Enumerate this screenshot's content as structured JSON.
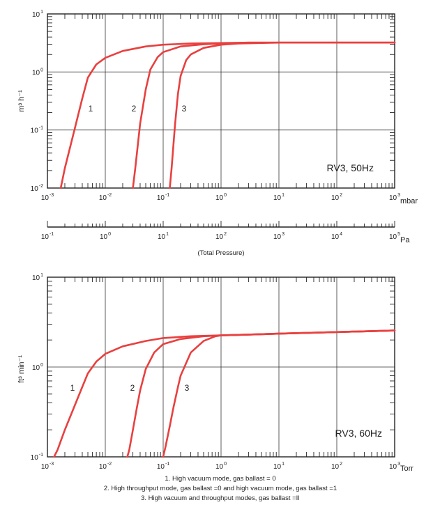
{
  "chart_data": [
    {
      "type": "line",
      "title": "",
      "panel_label": "RV3, 50Hz",
      "xscale": "log",
      "yscale": "log",
      "xlim": [
        0.001,
        1000
      ],
      "ylim": [
        0.01,
        10
      ],
      "x_unit": "mbar",
      "y_unit": "m³ h⁻¹",
      "x_ticks": [
        {
          "base": "10",
          "exp": "-3"
        },
        {
          "base": "10",
          "exp": "-2"
        },
        {
          "base": "10",
          "exp": "-1"
        },
        {
          "base": "10",
          "exp": "0"
        },
        {
          "base": "10",
          "exp": "1"
        },
        {
          "base": "10",
          "exp": "2"
        },
        {
          "base": "10",
          "exp": "3"
        }
      ],
      "y_ticks": [
        {
          "base": "10",
          "exp": "-2"
        },
        {
          "base": "10",
          "exp": "-1"
        },
        {
          "base": "10",
          "exp": "0"
        },
        {
          "base": "10",
          "exp": "1"
        }
      ],
      "secondary_axis": {
        "unit": "Pa",
        "caption": "(Total Pressure)",
        "ticks": [
          {
            "base": "10",
            "exp": "-1"
          },
          {
            "base": "10",
            "exp": "0"
          },
          {
            "base": "10",
            "exp": "1"
          },
          {
            "base": "10",
            "exp": "2"
          },
          {
            "base": "10",
            "exp": "3"
          },
          {
            "base": "10",
            "exp": "4"
          },
          {
            "base": "10",
            "exp": "5"
          }
        ]
      },
      "grid": true,
      "series": [
        {
          "name": "1",
          "x": [
            0.0017,
            0.002,
            0.003,
            0.004,
            0.005,
            0.007,
            0.01,
            0.02,
            0.05,
            0.1,
            0.3,
            1,
            3,
            10,
            100,
            1000
          ],
          "y": [
            0.01,
            0.022,
            0.11,
            0.35,
            0.8,
            1.35,
            1.75,
            2.3,
            2.75,
            2.95,
            3.1,
            3.15,
            3.2,
            3.2,
            3.2,
            3.2
          ]
        },
        {
          "name": "2",
          "x": [
            0.03,
            0.033,
            0.04,
            0.05,
            0.06,
            0.08,
            0.1,
            0.2,
            0.5,
            1,
            3,
            10,
            100,
            1000
          ],
          "y": [
            0.01,
            0.022,
            0.13,
            0.5,
            1.1,
            1.8,
            2.2,
            2.75,
            3.0,
            3.1,
            3.2,
            3.2,
            3.2,
            3.2
          ]
        },
        {
          "name": "3",
          "x": [
            0.13,
            0.14,
            0.16,
            0.18,
            0.2,
            0.25,
            0.3,
            0.5,
            1,
            2,
            10,
            100,
            1000
          ],
          "y": [
            0.01,
            0.022,
            0.12,
            0.42,
            0.85,
            1.6,
            2.0,
            2.6,
            2.95,
            3.1,
            3.2,
            3.2,
            3.2
          ]
        }
      ]
    },
    {
      "type": "line",
      "title": "",
      "panel_label": "RV3,  60Hz",
      "xscale": "log",
      "yscale": "log",
      "xlim": [
        0.001,
        1000
      ],
      "ylim": [
        0.1,
        10
      ],
      "x_unit": "Torr",
      "y_unit": "ft³ min⁻¹",
      "x_ticks": [
        {
          "base": "10",
          "exp": "-3"
        },
        {
          "base": "10",
          "exp": "-2"
        },
        {
          "base": "10",
          "exp": "-1"
        },
        {
          "base": "10",
          "exp": "0"
        },
        {
          "base": "10",
          "exp": "1"
        },
        {
          "base": "10",
          "exp": "2"
        },
        {
          "base": "10",
          "exp": "3"
        }
      ],
      "y_ticks": [
        {
          "base": "10",
          "exp": "-1"
        },
        {
          "base": "10",
          "exp": "0"
        },
        {
          "base": "10",
          "exp": "1"
        }
      ],
      "grid": true,
      "series": [
        {
          "name": "1",
          "x": [
            0.0013,
            0.0015,
            0.002,
            0.003,
            0.004,
            0.005,
            0.007,
            0.01,
            0.02,
            0.05,
            0.1,
            0.3,
            1,
            10,
            100,
            1000
          ],
          "y": [
            0.1,
            0.12,
            0.2,
            0.38,
            0.6,
            0.85,
            1.15,
            1.4,
            1.7,
            1.95,
            2.1,
            2.2,
            2.25,
            2.35,
            2.45,
            2.55
          ]
        },
        {
          "name": "2",
          "x": [
            0.024,
            0.026,
            0.03,
            0.035,
            0.04,
            0.05,
            0.07,
            0.1,
            0.2,
            0.5,
            1,
            10,
            100,
            1000
          ],
          "y": [
            0.1,
            0.12,
            0.2,
            0.35,
            0.55,
            0.95,
            1.45,
            1.8,
            2.05,
            2.2,
            2.25,
            2.35,
            2.45,
            2.55
          ]
        },
        {
          "name": "3",
          "x": [
            0.1,
            0.11,
            0.13,
            0.15,
            0.18,
            0.2,
            0.3,
            0.5,
            0.8,
            1,
            10,
            100,
            1000
          ],
          "y": [
            0.1,
            0.13,
            0.22,
            0.35,
            0.6,
            0.8,
            1.45,
            1.95,
            2.2,
            2.25,
            2.35,
            2.45,
            2.55
          ]
        }
      ]
    }
  ],
  "legend": [
    "1. High vacuum mode, gas ballast = 0",
    "2. High throughput mode, gas ballast =0 and high vacuum mode, gas ballast =1",
    "3. High vacuum and throughput modes, gas  ballast =II"
  ],
  "colors": {
    "series": "#e8403f",
    "grid": "#333333"
  }
}
